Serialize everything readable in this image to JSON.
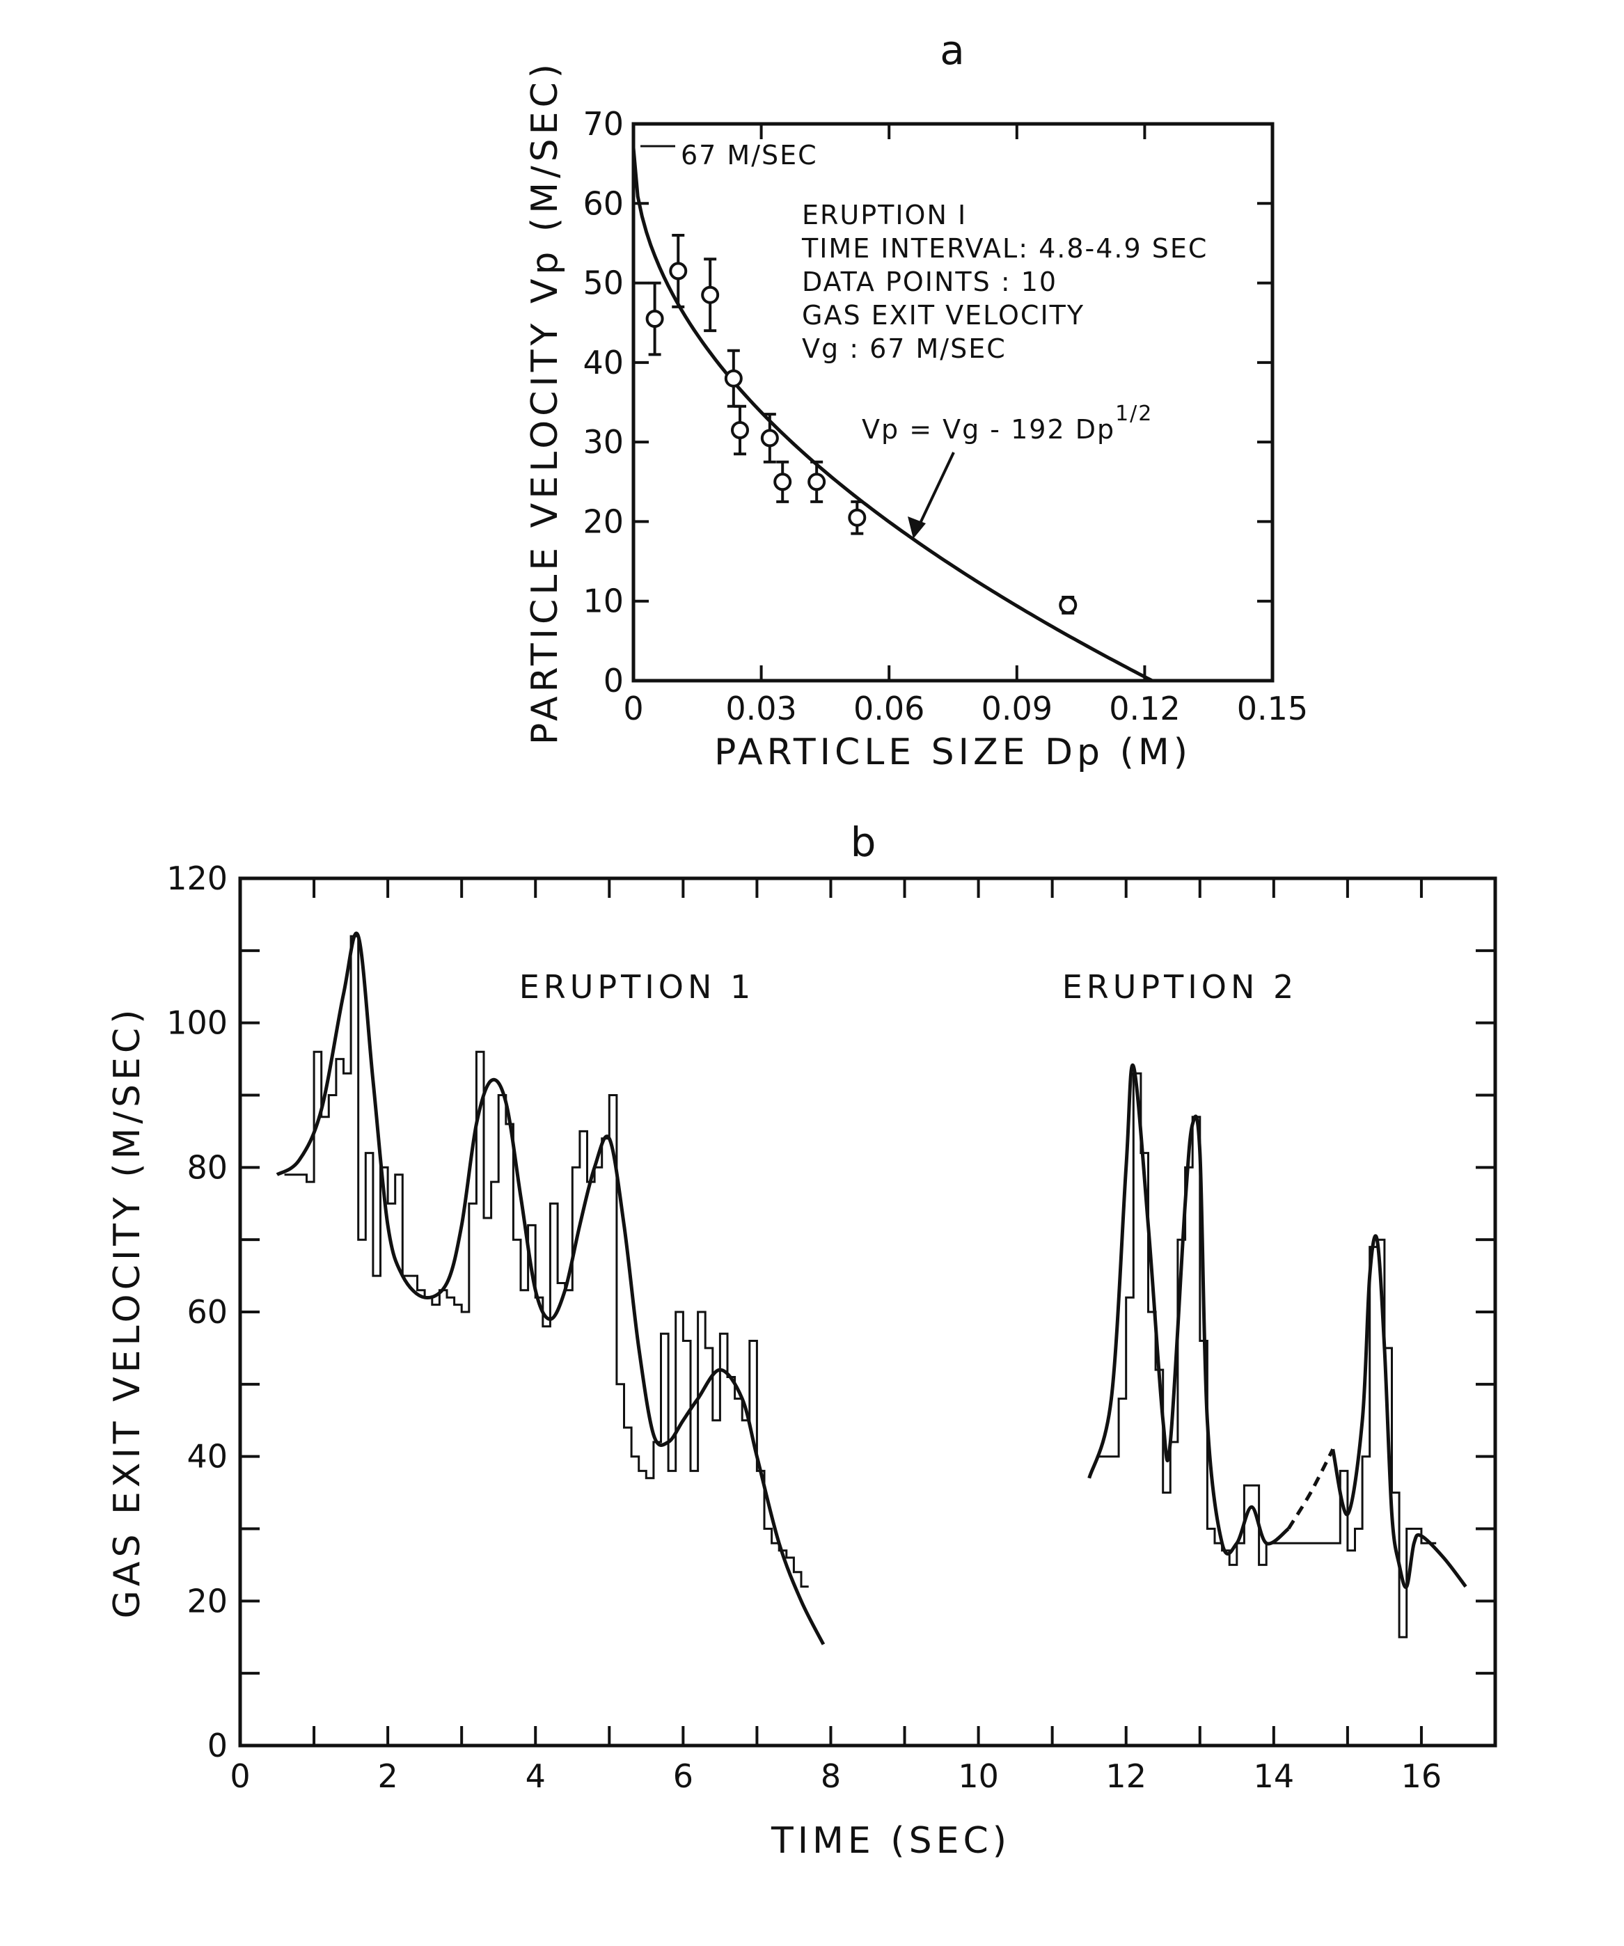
{
  "chart_data": [
    {
      "panel": "a",
      "type": "scatter",
      "title": "a",
      "xlabel": "PARTICLE SIZE Dp (M)",
      "ylabel": "PARTICLE VELOCITY Vp (M/SEC)",
      "xlim": [
        0,
        0.15
      ],
      "ylim": [
        0,
        70
      ],
      "x_ticks": [
        "0",
        "0.03",
        "0.06",
        "0.09",
        "0.12",
        "0.15"
      ],
      "y_ticks": [
        "0",
        "10",
        "20",
        "30",
        "40",
        "50",
        "60",
        "70"
      ],
      "annotations": {
        "vg_marker": "67 M/SEC",
        "info_lines": [
          "ERUPTION I",
          "TIME INTERVAL: 4.8-4.9 SEC",
          "DATA POINTS : 10",
          "GAS EXIT VELOCITY",
          "Vg : 67 M/SEC"
        ],
        "equation": "Vp = Vg - 192 Dp",
        "equation_exponent": "1/2"
      },
      "points": [
        {
          "x": 0.005,
          "y": 45.5,
          "err": 4.5
        },
        {
          "x": 0.0105,
          "y": 51.5,
          "err": 4.5
        },
        {
          "x": 0.018,
          "y": 48.5,
          "err": 4.5
        },
        {
          "x": 0.0235,
          "y": 38.0,
          "err": 3.5
        },
        {
          "x": 0.025,
          "y": 31.5,
          "err": 3.0
        },
        {
          "x": 0.032,
          "y": 30.5,
          "err": 3.0
        },
        {
          "x": 0.035,
          "y": 25.0,
          "err": 2.5
        },
        {
          "x": 0.043,
          "y": 25.0,
          "err": 2.5
        },
        {
          "x": 0.0525,
          "y": 20.5,
          "err": 2.0
        },
        {
          "x": 0.102,
          "y": 9.5,
          "err": 1.0
        }
      ],
      "fit_curve": {
        "vg": 67,
        "k": 192
      }
    },
    {
      "panel": "b",
      "type": "line",
      "title": "b",
      "xlabel": "TIME (SEC)",
      "ylabel": "GAS EXIT VELOCITY (M/SEC)",
      "xlim": [
        0,
        17
      ],
      "ylim": [
        0,
        120
      ],
      "x_ticks": [
        "0",
        "2",
        "4",
        "6",
        "8",
        "10",
        "12",
        "14",
        "16"
      ],
      "y_ticks": [
        "0",
        "20",
        "40",
        "60",
        "80",
        "100",
        "120"
      ],
      "series_labels": [
        "ERUPTION 1",
        "ERUPTION 2"
      ],
      "series": [
        {
          "kind": "step",
          "x": [
            0.6,
            0.9,
            1.0,
            1.1,
            1.2,
            1.3,
            1.4,
            1.5,
            1.6,
            1.7,
            1.8,
            1.9,
            2.0,
            2.1,
            2.2,
            2.3,
            2.4,
            2.5,
            2.6,
            2.7,
            2.8,
            2.9,
            3.0,
            3.1,
            3.2,
            3.3,
            3.4,
            3.5,
            3.6,
            3.7,
            3.8,
            3.9,
            4.0,
            4.1,
            4.2,
            4.3,
            4.4,
            4.5,
            4.6,
            4.7,
            4.8,
            4.9,
            5.0,
            5.1,
            5.2,
            5.3,
            5.4,
            5.5,
            5.6,
            5.7,
            5.8,
            5.9,
            6.0,
            6.1,
            6.2,
            6.3,
            6.4,
            6.5,
            6.6,
            6.7,
            6.8,
            6.9,
            7.0,
            7.1,
            7.2,
            7.3,
            7.4,
            7.5,
            7.6
          ],
          "y": [
            79,
            78,
            96,
            87,
            90,
            95,
            93,
            112,
            70,
            82,
            65,
            80,
            75,
            79,
            65,
            65,
            63,
            62,
            61,
            63,
            62,
            61,
            60,
            75,
            96,
            73,
            78,
            90,
            86,
            70,
            63,
            72,
            62,
            58,
            75,
            64,
            63,
            80,
            85,
            78,
            80,
            84,
            90,
            50,
            44,
            40,
            38,
            37,
            42,
            57,
            38,
            60,
            56,
            38,
            60,
            55,
            45,
            57,
            51,
            48,
            45,
            56,
            38,
            30,
            28,
            27,
            26,
            24,
            22
          ]
        },
        {
          "kind": "smooth",
          "x": [
            0.5,
            0.8,
            1.1,
            1.4,
            1.6,
            1.8,
            2.0,
            2.2,
            2.5,
            2.8,
            3.0,
            3.2,
            3.4,
            3.6,
            3.8,
            4.0,
            4.2,
            4.4,
            4.6,
            4.8,
            5.0,
            5.2,
            5.4,
            5.6,
            5.8,
            6.0,
            6.2,
            6.5,
            6.8,
            7.0,
            7.3,
            7.6,
            7.9
          ],
          "y": [
            79,
            81,
            88,
            104,
            112,
            92,
            72,
            65,
            62,
            64,
            72,
            86,
            92,
            89,
            76,
            63,
            59,
            63,
            72,
            80,
            84,
            72,
            55,
            43,
            42,
            45,
            48,
            52,
            48,
            40,
            28,
            20,
            14
          ]
        },
        {
          "kind": "step",
          "x": [
            11.6,
            11.9,
            12.0,
            12.1,
            12.2,
            12.3,
            12.4,
            12.5,
            12.6,
            12.7,
            12.8,
            12.9,
            13.0,
            13.1,
            13.2,
            13.3,
            13.4,
            13.5,
            13.6,
            13.7,
            13.8,
            13.9,
            14.0,
            14.9,
            15.0,
            15.1,
            15.2,
            15.3,
            15.4,
            15.5,
            15.6,
            15.7,
            15.8,
            15.9,
            16.0,
            16.1
          ],
          "y": [
            40,
            48,
            62,
            93,
            82,
            60,
            52,
            35,
            42,
            70,
            80,
            87,
            56,
            30,
            28,
            27,
            25,
            28,
            36,
            36,
            25,
            28,
            28,
            38,
            27,
            30,
            40,
            69,
            70,
            55,
            35,
            15,
            30,
            30,
            28,
            28
          ]
        },
        {
          "kind": "smooth",
          "x": [
            11.5,
            11.8,
            12.0,
            12.1,
            12.3,
            12.5,
            12.6,
            12.8,
            12.9,
            13.0,
            13.1,
            13.3,
            13.5,
            13.7,
            13.9,
            14.2
          ],
          "y": [
            37,
            48,
            80,
            94,
            72,
            45,
            42,
            75,
            86,
            82,
            45,
            28,
            28,
            33,
            28,
            30
          ]
        },
        {
          "kind": "dashed",
          "x": [
            14.2,
            14.5,
            14.8
          ],
          "y": [
            30,
            35,
            41
          ]
        },
        {
          "kind": "smooth",
          "x": [
            14.8,
            15.0,
            15.2,
            15.3,
            15.4,
            15.5,
            15.6,
            15.7,
            15.8,
            15.9,
            16.0,
            16.3,
            16.6
          ],
          "y": [
            41,
            32,
            45,
            65,
            70,
            55,
            32,
            25,
            22,
            28,
            29,
            26,
            22
          ]
        }
      ]
    }
  ]
}
